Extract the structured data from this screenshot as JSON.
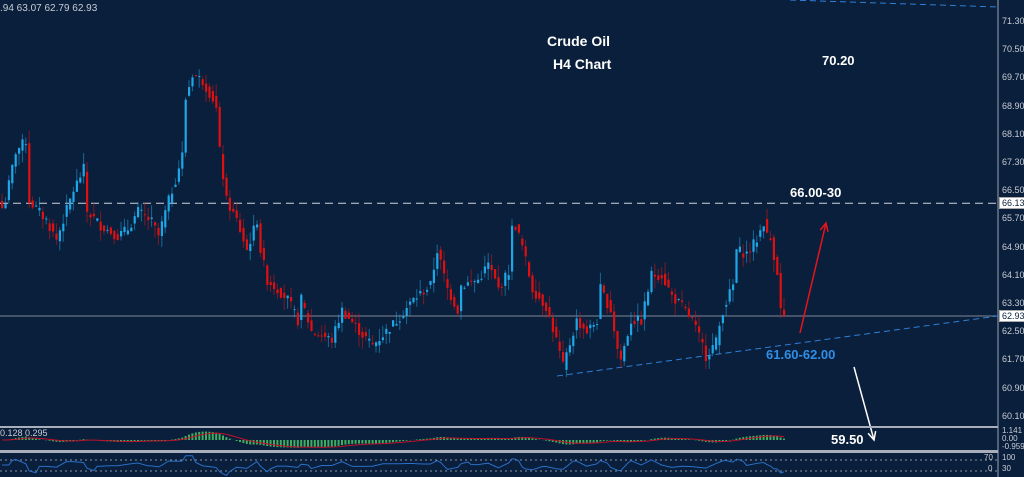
{
  "header": {
    "ohlc": ".94 63.07 62.79 62.93"
  },
  "annotations": {
    "title": "Crude Oil",
    "subtitle": "H4 Chart",
    "target_high": "70.20",
    "resistance": "66.00-30",
    "support": "61.60-62.00",
    "target_low": "59.50"
  },
  "colors": {
    "background": "#0a1f3b",
    "up": "#1ea7e8",
    "down": "#e01010",
    "trendline": "#2f7fd8",
    "support_label": "#2f8fe8",
    "arrow_up": "#e8141c",
    "arrow_down": "#ffffff"
  },
  "chart_data": {
    "type": "candlestick",
    "ylim": [
      59.8,
      71.6
    ],
    "yticks": [
      "71.30",
      "70.50",
      "69.70",
      "68.90",
      "68.10",
      "67.30",
      "66.50",
      "65.70",
      "64.90",
      "64.10",
      "63.30",
      "62.50",
      "61.70",
      "60.90",
      "60.10"
    ],
    "price_tags": [
      "66.13",
      "62.93"
    ],
    "resistance_level": 66.13,
    "current_price": 62.93,
    "close_path": [
      [
        0,
        66.0
      ],
      [
        1,
        66.2
      ],
      [
        4,
        67.6
      ],
      [
        7,
        67.9
      ],
      [
        8,
        66.2
      ],
      [
        13,
        65.65
      ],
      [
        16,
        65.1
      ],
      [
        21,
        66.5
      ],
      [
        24,
        67.1
      ],
      [
        25,
        65.9
      ],
      [
        29,
        65.5
      ],
      [
        34,
        65.2
      ],
      [
        37,
        65.4
      ],
      [
        40,
        65.9
      ],
      [
        44,
        65.6
      ],
      [
        46,
        65.2
      ],
      [
        49,
        66.2
      ],
      [
        51,
        66.8
      ],
      [
        53,
        67.5
      ],
      [
        54,
        69.1
      ],
      [
        56,
        69.8
      ],
      [
        59,
        69.6
      ],
      [
        62,
        69.1
      ],
      [
        63,
        68.8
      ],
      [
        64,
        67.6
      ],
      [
        66,
        66.2
      ],
      [
        69,
        65.65
      ],
      [
        72,
        64.8
      ],
      [
        75,
        65.65
      ],
      [
        76,
        64.8
      ],
      [
        78,
        63.95
      ],
      [
        81,
        63.7
      ],
      [
        84,
        63.4
      ],
      [
        87,
        62.8
      ],
      [
        88,
        63.4
      ],
      [
        91,
        62.5
      ],
      [
        97,
        62.25
      ],
      [
        100,
        63.1
      ],
      [
        106,
        62.4
      ],
      [
        109,
        62.1
      ],
      [
        113,
        62.5
      ],
      [
        116,
        62.8
      ],
      [
        121,
        63.4
      ],
      [
        126,
        63.8
      ],
      [
        128,
        64.8
      ],
      [
        131,
        63.7
      ],
      [
        134,
        63.1
      ],
      [
        135,
        63.8
      ],
      [
        140,
        63.95
      ],
      [
        143,
        64.4
      ],
      [
        146,
        63.7
      ],
      [
        149,
        64.2
      ],
      [
        150,
        65.4
      ],
      [
        151,
        65.5
      ],
      [
        153,
        64.9
      ],
      [
        156,
        63.7
      ],
      [
        160,
        63.2
      ],
      [
        163,
        62.25
      ],
      [
        165,
        61.5
      ],
      [
        169,
        62.8
      ],
      [
        172,
        62.5
      ],
      [
        175,
        62.8
      ],
      [
        176,
        63.7
      ],
      [
        179,
        63.1
      ],
      [
        181,
        62.0
      ],
      [
        182,
        61.7
      ],
      [
        185,
        62.8
      ],
      [
        188,
        62.8
      ],
      [
        191,
        64.1
      ],
      [
        194,
        64.1
      ],
      [
        197,
        63.5
      ],
      [
        200,
        63.2
      ],
      [
        203,
        62.8
      ],
      [
        206,
        62.1
      ],
      [
        207,
        61.8
      ],
      [
        210,
        62.2
      ],
      [
        212,
        63.1
      ],
      [
        215,
        63.8
      ],
      [
        216,
        64.8
      ],
      [
        219,
        64.7
      ],
      [
        222,
        65.1
      ],
      [
        224,
        65.6
      ],
      [
        225,
        65.2
      ],
      [
        226,
        65.1
      ],
      [
        228,
        64.2
      ],
      [
        229,
        63.1
      ],
      [
        230,
        62.93
      ]
    ],
    "macd": {
      "values_label": "0.128 0.295",
      "ticks": [
        "1.141",
        "0.00",
        "-0.959"
      ]
    },
    "rsi": {
      "ticks": [
        "100",
        "70",
        "30",
        "0"
      ]
    }
  }
}
